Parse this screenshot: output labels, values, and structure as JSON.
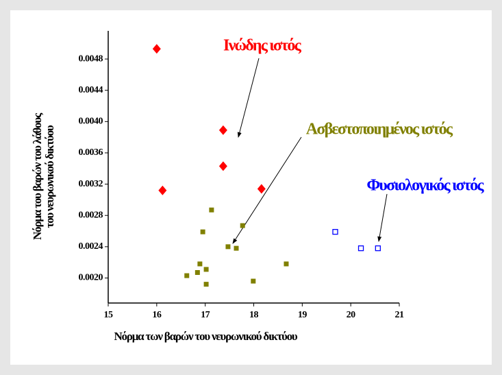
{
  "chart_data": {
    "type": "scatter",
    "x_label": "Νόρμα των βαρών του νευρωνικού δικτύου",
    "y_label": [
      "Νόρμα του βαρών του λάθους",
      "του νευρωνικού δικτύου"
    ],
    "xlim": [
      15,
      21
    ],
    "xticks": [
      15,
      16,
      17,
      18,
      19,
      20,
      21
    ],
    "ylim": [
      0.00168,
      0.00516
    ],
    "yticks": [
      {
        "value": 0.002,
        "label": "0.0020"
      },
      {
        "value": 0.0024,
        "label": "0.0024"
      },
      {
        "value": 0.0028,
        "label": "0.0028"
      },
      {
        "value": 0.0032,
        "label": "0.0032"
      },
      {
        "value": 0.0036,
        "label": "0.0036"
      },
      {
        "value": 0.004,
        "label": "0.0040"
      },
      {
        "value": 0.0044,
        "label": "0.0044"
      },
      {
        "value": 0.0048,
        "label": "0.0048"
      }
    ],
    "series": [
      {
        "name": "Ινώδης ιστός",
        "color": "#ff0000",
        "marker": "diamond",
        "filled": true,
        "x": [
          16.0,
          17.37,
          17.37,
          16.12,
          18.16
        ],
        "values": [
          0.00493,
          0.00389,
          0.00343,
          0.00312,
          0.00314
        ]
      },
      {
        "name": "Ασβεστοποιημένος ιστός",
        "color": "#808000",
        "marker": "square",
        "filled": true,
        "x": [
          17.13,
          17.77,
          16.95,
          17.47,
          17.64,
          16.89,
          18.67,
          16.84,
          17.02,
          16.62,
          17.02,
          17.99
        ],
        "values": [
          0.00287,
          0.00267,
          0.00259,
          0.0024,
          0.00238,
          0.00218,
          0.00218,
          0.00207,
          0.00211,
          0.00203,
          0.00192,
          0.00196
        ]
      },
      {
        "name": "Φυσιολογικός ιστός",
        "color": "#0000ff",
        "marker": "square",
        "filled": false,
        "x": [
          19.68,
          20.21,
          20.56
        ],
        "values": [
          0.00259,
          0.00238,
          0.00238
        ]
      }
    ]
  }
}
